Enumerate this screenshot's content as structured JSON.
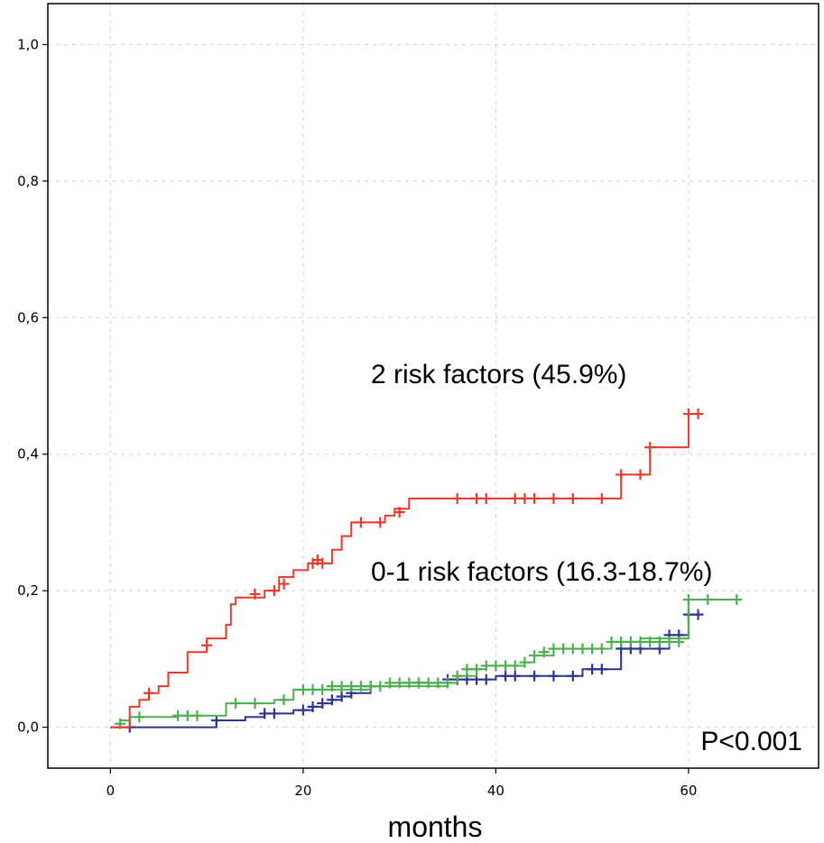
{
  "chart_data": {
    "type": "line",
    "title": "",
    "xlabel": "months",
    "ylabel": "",
    "xlim": [
      -6.5,
      73.5
    ],
    "ylim": [
      -0.06,
      1.06
    ],
    "xticks": [
      0,
      20,
      40,
      60
    ],
    "xtick_labels": [
      "0",
      "20",
      "40",
      "60"
    ],
    "yticks": [
      0.0,
      0.2,
      0.4,
      0.6,
      0.8,
      1.0
    ],
    "ytick_labels": [
      "0,0",
      "0,2",
      "0,4",
      "0,6",
      "0,8",
      "1,0"
    ],
    "grid": true,
    "annotations": [
      {
        "text": "2 risk factors (45.9%)",
        "placement": "upper-right, above red curve"
      },
      {
        "text": "0-1 risk factors (16.3-18.7%)",
        "placement": "right, above green and blue curves"
      },
      {
        "text": "P<0.001",
        "placement": "bottom-right"
      }
    ],
    "series": [
      {
        "color": "#e8392d",
        "steps": [
          [
            0,
            0
          ],
          [
            2,
            0.03
          ],
          [
            3,
            0.04
          ],
          [
            4,
            0.05
          ],
          [
            5,
            0.06
          ],
          [
            6,
            0.08
          ],
          [
            8,
            0.11
          ],
          [
            10,
            0.13
          ],
          [
            12,
            0.15
          ],
          [
            12.5,
            0.18
          ],
          [
            13,
            0.19
          ],
          [
            16,
            0.2
          ],
          [
            17.5,
            0.22
          ],
          [
            19,
            0.23
          ],
          [
            20.5,
            0.24
          ],
          [
            23,
            0.26
          ],
          [
            24,
            0.28
          ],
          [
            25,
            0.3
          ],
          [
            28.5,
            0.31
          ],
          [
            29.5,
            0.32
          ],
          [
            31,
            0.335
          ],
          [
            53,
            0.37
          ],
          [
            56,
            0.41
          ],
          [
            60,
            0.459
          ]
        ],
        "end_x": 61,
        "censored": [
          [
            4,
            0.05
          ],
          [
            10,
            0.12
          ],
          [
            15,
            0.195
          ],
          [
            17,
            0.2
          ],
          [
            18,
            0.21
          ],
          [
            21,
            0.24
          ],
          [
            21.5,
            0.245
          ],
          [
            22,
            0.24
          ],
          [
            26,
            0.3
          ],
          [
            28,
            0.3
          ],
          [
            30,
            0.315
          ],
          [
            36,
            0.335
          ],
          [
            38,
            0.335
          ],
          [
            39,
            0.335
          ],
          [
            42,
            0.335
          ],
          [
            43,
            0.335
          ],
          [
            44,
            0.335
          ],
          [
            46,
            0.335
          ],
          [
            48,
            0.335
          ],
          [
            51,
            0.335
          ],
          [
            53,
            0.37
          ],
          [
            55,
            0.37
          ],
          [
            56,
            0.41
          ],
          [
            60,
            0.459
          ],
          [
            61,
            0.459
          ]
        ]
      },
      {
        "color": "#2e3590",
        "steps": [
          [
            0,
            0
          ],
          [
            11,
            0.01
          ],
          [
            14,
            0.015
          ],
          [
            16,
            0.02
          ],
          [
            19,
            0.025
          ],
          [
            21,
            0.03
          ],
          [
            22,
            0.035
          ],
          [
            23,
            0.04
          ],
          [
            24,
            0.045
          ],
          [
            25,
            0.05
          ],
          [
            27,
            0.06
          ],
          [
            30,
            0.065
          ],
          [
            35,
            0.07
          ],
          [
            40,
            0.075
          ],
          [
            49,
            0.085
          ],
          [
            53,
            0.115
          ],
          [
            58,
            0.135
          ],
          [
            60,
            0.165
          ]
        ],
        "end_x": 61,
        "censored": [
          [
            2,
            0
          ],
          [
            11,
            0.01
          ],
          [
            16,
            0.02
          ],
          [
            17,
            0.02
          ],
          [
            20,
            0.025
          ],
          [
            21,
            0.03
          ],
          [
            22,
            0.035
          ],
          [
            23,
            0.04
          ],
          [
            24,
            0.045
          ],
          [
            25,
            0.05
          ],
          [
            27,
            0.06
          ],
          [
            32,
            0.065
          ],
          [
            35,
            0.07
          ],
          [
            36,
            0.07
          ],
          [
            37,
            0.07
          ],
          [
            38,
            0.07
          ],
          [
            39,
            0.07
          ],
          [
            41,
            0.075
          ],
          [
            42,
            0.075
          ],
          [
            44,
            0.075
          ],
          [
            46,
            0.075
          ],
          [
            48,
            0.075
          ],
          [
            50,
            0.085
          ],
          [
            51,
            0.085
          ],
          [
            53,
            0.115
          ],
          [
            54,
            0.115
          ],
          [
            55,
            0.115
          ],
          [
            57,
            0.115
          ],
          [
            58,
            0.135
          ],
          [
            59,
            0.135
          ],
          [
            60,
            0.165
          ],
          [
            61,
            0.165
          ]
        ]
      },
      {
        "color": "#4caf50",
        "steps": [
          [
            0,
            0
          ],
          [
            1,
            0.01
          ],
          [
            2,
            0.015
          ],
          [
            7,
            0.017
          ],
          [
            12,
            0.035
          ],
          [
            17,
            0.04
          ],
          [
            19,
            0.055
          ],
          [
            27,
            0.06
          ],
          [
            35,
            0.065
          ],
          [
            36,
            0.075
          ],
          [
            38,
            0.085
          ],
          [
            39,
            0.09
          ],
          [
            43,
            0.095
          ],
          [
            44,
            0.105
          ],
          [
            46,
            0.115
          ],
          [
            52,
            0.125
          ],
          [
            55,
            0.13
          ],
          [
            60,
            0.187
          ]
        ],
        "end_x": 65,
        "censored": [
          [
            1,
            0.005
          ],
          [
            3,
            0.015
          ],
          [
            7,
            0.017
          ],
          [
            8,
            0.017
          ],
          [
            9,
            0.017
          ],
          [
            13,
            0.035
          ],
          [
            15,
            0.035
          ],
          [
            18,
            0.04
          ],
          [
            20,
            0.055
          ],
          [
            21,
            0.055
          ],
          [
            22,
            0.055
          ],
          [
            23,
            0.06
          ],
          [
            24,
            0.06
          ],
          [
            25,
            0.06
          ],
          [
            26,
            0.06
          ],
          [
            27,
            0.06
          ],
          [
            28,
            0.06
          ],
          [
            29,
            0.065
          ],
          [
            30,
            0.065
          ],
          [
            31,
            0.065
          ],
          [
            32,
            0.065
          ],
          [
            33,
            0.065
          ],
          [
            34,
            0.065
          ],
          [
            35,
            0.065
          ],
          [
            36,
            0.075
          ],
          [
            37,
            0.085
          ],
          [
            38,
            0.085
          ],
          [
            39,
            0.09
          ],
          [
            40,
            0.09
          ],
          [
            41,
            0.09
          ],
          [
            42,
            0.09
          ],
          [
            43,
            0.095
          ],
          [
            44,
            0.105
          ],
          [
            45,
            0.11
          ],
          [
            46,
            0.115
          ],
          [
            47,
            0.115
          ],
          [
            48,
            0.115
          ],
          [
            49,
            0.115
          ],
          [
            50,
            0.115
          ],
          [
            51,
            0.115
          ],
          [
            52,
            0.125
          ],
          [
            53,
            0.125
          ],
          [
            54,
            0.125
          ],
          [
            55,
            0.125
          ],
          [
            56,
            0.125
          ],
          [
            57,
            0.125
          ],
          [
            58,
            0.125
          ],
          [
            59,
            0.125
          ],
          [
            60,
            0.187
          ],
          [
            62,
            0.187
          ],
          [
            65,
            0.187
          ]
        ]
      }
    ]
  }
}
